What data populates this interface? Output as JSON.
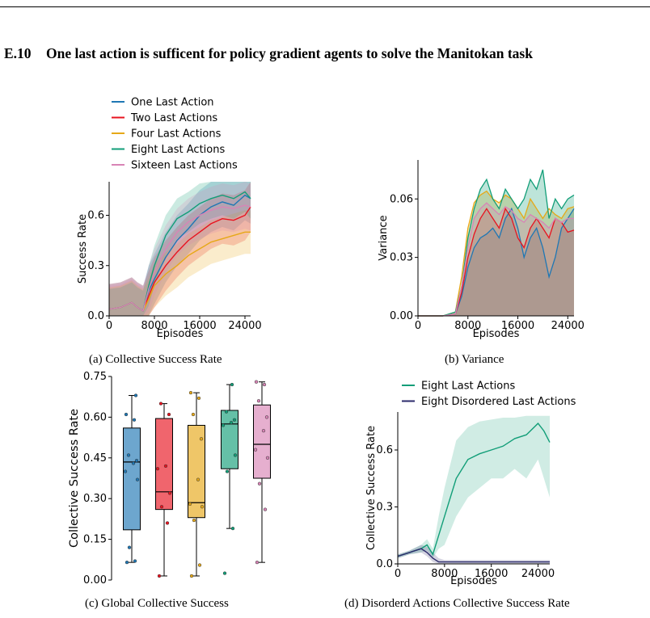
{
  "section": {
    "number": "E.10",
    "title": "One last action is sufficent for policy gradient agents to solve the Manitokan task"
  },
  "captions": {
    "a": "(a) Collective Success Rate",
    "b": "(b) Variance",
    "c": "(c) Global Collective Success",
    "d": "(d) Disorderd Actions Collective Success Rate"
  },
  "colors": {
    "one": "#1f77b4",
    "two": "#e8131f",
    "four": "#e6a817",
    "eight": "#129e78",
    "sixteen": "#d884b6",
    "disordered": "#2b2a6b",
    "variance_fill": "#a08e86"
  },
  "chart_data": [
    {
      "id": "a",
      "type": "line",
      "title": "",
      "xlabel": "Episodes",
      "ylabel": "Success Rate",
      "xlim": [
        0,
        25000
      ],
      "ylim": [
        0,
        0.8
      ],
      "xticks": [
        "0",
        "8000",
        "16000",
        "24000"
      ],
      "yticks": [
        "0.0",
        "0.3",
        "0.6"
      ],
      "legend": "top",
      "legend_entries": [
        "One Last Action",
        "Two Last Actions",
        "Four Last Actions",
        "Eight Last Actions",
        "Sixteen Last Actions"
      ],
      "x": [
        0,
        2000,
        4000,
        5000,
        6000,
        7000,
        8000,
        10000,
        12000,
        14000,
        16000,
        18000,
        20000,
        22000,
        24000,
        25000
      ],
      "series": [
        {
          "name": "One Last Action",
          "values": [
            0.04,
            0.05,
            0.08,
            0.05,
            0.03,
            0.15,
            0.22,
            0.35,
            0.45,
            0.52,
            0.6,
            0.65,
            0.68,
            0.66,
            0.72,
            0.7
          ],
          "band": 0.15
        },
        {
          "name": "Two Last Actions",
          "values": [
            0.04,
            0.05,
            0.08,
            0.05,
            0.03,
            0.12,
            0.2,
            0.3,
            0.38,
            0.45,
            0.5,
            0.55,
            0.58,
            0.57,
            0.6,
            0.65
          ],
          "band": 0.15
        },
        {
          "name": "Four Last Actions",
          "values": [
            0.04,
            0.05,
            0.08,
            0.05,
            0.03,
            0.1,
            0.18,
            0.25,
            0.3,
            0.36,
            0.4,
            0.44,
            0.46,
            0.48,
            0.5,
            0.5
          ],
          "band": 0.13
        },
        {
          "name": "Eight Last Actions",
          "values": [
            0.04,
            0.05,
            0.08,
            0.05,
            0.03,
            0.18,
            0.3,
            0.48,
            0.58,
            0.62,
            0.67,
            0.7,
            0.72,
            0.7,
            0.74,
            0.7
          ],
          "band": 0.12
        },
        {
          "name": "Sixteen Last Actions",
          "values": [
            0.04,
            0.05,
            0.08,
            0.05,
            0.03,
            0.16,
            0.26,
            0.4,
            0.5,
            0.56,
            0.6,
            0.63,
            0.65,
            0.64,
            0.66,
            0.65
          ],
          "band": 0.14
        }
      ]
    },
    {
      "id": "b",
      "type": "area",
      "title": "",
      "xlabel": "Episodes",
      "ylabel": "Variance",
      "xlim": [
        0,
        25000
      ],
      "ylim": [
        0,
        0.08
      ],
      "xticks": [
        "0",
        "8000",
        "16000",
        "24000"
      ],
      "yticks": [
        "0.00",
        "0.03",
        "0.06"
      ],
      "x": [
        0,
        2000,
        4000,
        6000,
        7000,
        8000,
        9000,
        10000,
        11000,
        12000,
        13000,
        14000,
        15000,
        16000,
        17000,
        18000,
        19000,
        20000,
        21000,
        22000,
        23000,
        24000,
        25000
      ],
      "series": [
        {
          "name": "One Last Action",
          "values": [
            0,
            0,
            0,
            0.001,
            0.01,
            0.025,
            0.035,
            0.04,
            0.042,
            0.045,
            0.04,
            0.05,
            0.055,
            0.045,
            0.03,
            0.04,
            0.045,
            0.035,
            0.02,
            0.03,
            0.045,
            0.05,
            0.055
          ]
        },
        {
          "name": "Two Last Actions",
          "values": [
            0,
            0,
            0,
            0.001,
            0.012,
            0.03,
            0.042,
            0.05,
            0.055,
            0.05,
            0.045,
            0.055,
            0.05,
            0.04,
            0.035,
            0.045,
            0.05,
            0.045,
            0.04,
            0.05,
            0.048,
            0.043,
            0.044
          ]
        },
        {
          "name": "Four Last Actions",
          "values": [
            0,
            0,
            0,
            0.002,
            0.02,
            0.045,
            0.058,
            0.062,
            0.064,
            0.06,
            0.058,
            0.062,
            0.06,
            0.055,
            0.05,
            0.06,
            0.055,
            0.05,
            0.055,
            0.052,
            0.05,
            0.055,
            0.056
          ]
        },
        {
          "name": "Eight Last Actions",
          "values": [
            0,
            0,
            0,
            0.002,
            0.015,
            0.04,
            0.055,
            0.065,
            0.07,
            0.06,
            0.055,
            0.065,
            0.06,
            0.055,
            0.06,
            0.07,
            0.065,
            0.075,
            0.05,
            0.06,
            0.055,
            0.06,
            0.062
          ]
        },
        {
          "name": "Sixteen Last Actions",
          "values": [
            0,
            0,
            0,
            0.001,
            0.015,
            0.035,
            0.05,
            0.055,
            0.058,
            0.055,
            0.052,
            0.056,
            0.054,
            0.05,
            0.048,
            0.052,
            0.05,
            0.048,
            0.045,
            0.05,
            0.048,
            0.05,
            0.05
          ]
        }
      ]
    },
    {
      "id": "c",
      "type": "box",
      "title": "",
      "xlabel": "",
      "ylabel": "Collective Success Rate",
      "ylim": [
        0,
        0.75
      ],
      "yticks": [
        "0.00",
        "0.15",
        "0.30",
        "0.45",
        "0.60",
        "0.75"
      ],
      "boxes": [
        {
          "name": "One Last Action",
          "whisker_low": 0.065,
          "q1": 0.185,
          "median": 0.435,
          "q3": 0.56,
          "whisker_high": 0.68,
          "points": [
            0.065,
            0.07,
            0.12,
            0.37,
            0.4,
            0.43,
            0.44,
            0.46,
            0.59,
            0.61,
            0.68
          ]
        },
        {
          "name": "Two Last Actions",
          "whisker_low": 0.015,
          "q1": 0.26,
          "median": 0.325,
          "q3": 0.595,
          "whisker_high": 0.65,
          "points": [
            0.015,
            0.21,
            0.27,
            0.32,
            0.41,
            0.42,
            0.61,
            0.65
          ]
        },
        {
          "name": "Four Last Actions",
          "whisker_low": 0.015,
          "q1": 0.23,
          "median": 0.285,
          "q3": 0.57,
          "whisker_high": 0.69,
          "points": [
            0.015,
            0.055,
            0.22,
            0.27,
            0.28,
            0.37,
            0.52,
            0.61,
            0.67,
            0.69
          ]
        },
        {
          "name": "Eight Last Actions",
          "whisker_low": 0.19,
          "q1": 0.41,
          "median": 0.575,
          "q3": 0.625,
          "whisker_high": 0.72,
          "points": [
            0.025,
            0.19,
            0.4,
            0.46,
            0.57,
            0.58,
            0.59,
            0.62,
            0.72
          ]
        },
        {
          "name": "Sixteen Last Actions",
          "whisker_low": 0.065,
          "q1": 0.375,
          "median": 0.5,
          "q3": 0.645,
          "whisker_high": 0.73,
          "points": [
            0.065,
            0.26,
            0.355,
            0.45,
            0.48,
            0.55,
            0.6,
            0.66,
            0.72,
            0.73
          ]
        }
      ]
    },
    {
      "id": "d",
      "type": "line",
      "title": "",
      "xlabel": "Episodes",
      "ylabel": "Collective Success Rate",
      "xlim": [
        0,
        26000
      ],
      "ylim": [
        0,
        0.8
      ],
      "xticks": [
        "0",
        "8000",
        "16000",
        "24000"
      ],
      "yticks": [
        "0.0",
        "0.3",
        "0.6"
      ],
      "legend": "top",
      "legend_entries": [
        "Eight Last Actions",
        "Eight Disordered Last Actions"
      ],
      "x": [
        0,
        2000,
        4000,
        5000,
        6000,
        7000,
        8000,
        10000,
        12000,
        14000,
        16000,
        18000,
        20000,
        22000,
        24000,
        25000,
        26000
      ],
      "series": [
        {
          "name": "Eight Last Actions",
          "values": [
            0.04,
            0.06,
            0.08,
            0.1,
            0.05,
            0.15,
            0.25,
            0.45,
            0.55,
            0.58,
            0.6,
            0.62,
            0.66,
            0.68,
            0.74,
            0.7,
            0.64
          ],
          "band_low": [
            0.03,
            0.05,
            0.06,
            0.07,
            0.03,
            0.08,
            0.1,
            0.25,
            0.35,
            0.4,
            0.45,
            0.45,
            0.5,
            0.45,
            0.55,
            0.45,
            0.35
          ],
          "band_high": [
            0.05,
            0.07,
            0.1,
            0.13,
            0.08,
            0.25,
            0.4,
            0.65,
            0.72,
            0.75,
            0.76,
            0.77,
            0.77,
            0.78,
            0.78,
            0.78,
            0.78
          ]
        },
        {
          "name": "Eight Disordered Last Actions",
          "values": [
            0.04,
            0.06,
            0.08,
            0.06,
            0.03,
            0.01,
            0.01,
            0.01,
            0.01,
            0.01,
            0.01,
            0.01,
            0.01,
            0.01,
            0.01,
            0.01,
            0.01
          ],
          "band_low": [
            0.03,
            0.05,
            0.06,
            0.04,
            0.01,
            0,
            0,
            0,
            0,
            0,
            0,
            0,
            0,
            0,
            0,
            0,
            0
          ],
          "band_high": [
            0.05,
            0.07,
            0.1,
            0.09,
            0.06,
            0.03,
            0.02,
            0.02,
            0.02,
            0.02,
            0.02,
            0.02,
            0.02,
            0.02,
            0.02,
            0.02,
            0.02
          ]
        }
      ]
    }
  ]
}
